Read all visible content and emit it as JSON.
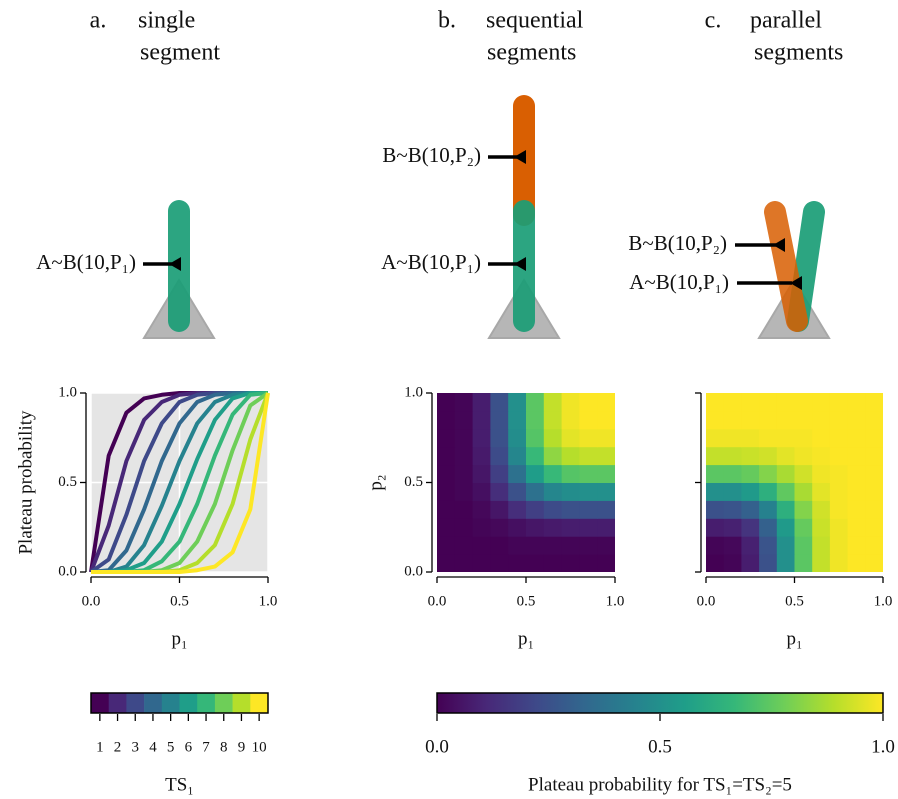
{
  "panels": [
    {
      "letter": "a.",
      "title": [
        "single",
        "segment"
      ],
      "labels": [
        "A~B(10,P₁)"
      ]
    },
    {
      "letter": "b.",
      "title": [
        "sequential",
        "segments"
      ],
      "labels": [
        "B~B(10,P₂)",
        "A~B(10,P₁)"
      ]
    },
    {
      "letter": "c.",
      "title": [
        "parallel",
        "segments"
      ],
      "labels": [
        "B~B(10,P₂)",
        "A~B(10,P₁)"
      ]
    }
  ],
  "colormap": [
    "#440154",
    "#482878",
    "#3e4989",
    "#31688e",
    "#26828e",
    "#1f9e89",
    "#35b779",
    "#6ece58",
    "#b5de2b",
    "#fde725"
  ],
  "chart_data": [
    {
      "type": "line",
      "xlabel": "p₁",
      "ylabel": "Plateau probability",
      "grid": true,
      "x": [
        0,
        0.1,
        0.2,
        0.3,
        0.4,
        0.5,
        0.6,
        0.7,
        0.8,
        0.9,
        1
      ],
      "xlim": [
        0,
        1
      ],
      "ylim": [
        0,
        1
      ],
      "xticks": [
        {
          "value": 0,
          "label": "0.0"
        },
        {
          "value": 0.5,
          "label": "0.5"
        },
        {
          "value": 1,
          "label": "1.0"
        }
      ],
      "yticks": [
        {
          "value": 0,
          "label": "0.0"
        },
        {
          "value": 0.5,
          "label": "0.5"
        },
        {
          "value": 1,
          "label": "1.0"
        }
      ],
      "legend_title": "TS₁",
      "series": [
        {
          "name": "1",
          "color": "#440154",
          "values": [
            0,
            0.65,
            0.89,
            0.97,
            0.99,
            1,
            1,
            1,
            1,
            1,
            1
          ]
        },
        {
          "name": "2",
          "color": "#482878",
          "values": [
            0,
            0.26,
            0.62,
            0.85,
            0.95,
            0.99,
            1,
            1,
            1,
            1,
            1
          ]
        },
        {
          "name": "3",
          "color": "#3e4989",
          "values": [
            0,
            0.07,
            0.32,
            0.62,
            0.83,
            0.95,
            0.99,
            1,
            1,
            1,
            1
          ]
        },
        {
          "name": "4",
          "color": "#31688e",
          "values": [
            0,
            0.01,
            0.12,
            0.35,
            0.62,
            0.83,
            0.95,
            0.99,
            1,
            1,
            1
          ]
        },
        {
          "name": "5",
          "color": "#26828e",
          "values": [
            0,
            0,
            0.03,
            0.15,
            0.37,
            0.62,
            0.83,
            0.95,
            0.99,
            1,
            1
          ]
        },
        {
          "name": "6",
          "color": "#1f9e89",
          "values": [
            0,
            0,
            0.01,
            0.05,
            0.17,
            0.38,
            0.63,
            0.85,
            0.97,
            1,
            1
          ]
        },
        {
          "name": "7",
          "color": "#35b779",
          "values": [
            0,
            0,
            0,
            0.01,
            0.06,
            0.17,
            0.38,
            0.65,
            0.88,
            0.99,
            1
          ]
        },
        {
          "name": "8",
          "color": "#6ece58",
          "values": [
            0,
            0,
            0,
            0,
            0.01,
            0.05,
            0.17,
            0.38,
            0.68,
            0.93,
            1
          ]
        },
        {
          "name": "9",
          "color": "#b5de2b",
          "values": [
            0,
            0,
            0,
            0,
            0,
            0.01,
            0.05,
            0.15,
            0.38,
            0.74,
            1
          ]
        },
        {
          "name": "10",
          "color": "#fde725",
          "values": [
            0,
            0,
            0,
            0,
            0,
            0,
            0.01,
            0.03,
            0.11,
            0.35,
            1
          ]
        }
      ]
    },
    {
      "type": "heatmap",
      "xlabel": "p₁",
      "ylabel": "p₂",
      "x": [
        0.05,
        0.15,
        0.25,
        0.35,
        0.45,
        0.55,
        0.65,
        0.75,
        0.85,
        0.95
      ],
      "y": [
        0.05,
        0.15,
        0.25,
        0.35,
        0.45,
        0.55,
        0.65,
        0.75,
        0.85,
        0.95
      ],
      "xlim": [
        0,
        1
      ],
      "ylim": [
        0,
        1
      ],
      "xticks": [
        {
          "value": 0,
          "label": "0.0"
        },
        {
          "value": 0.5,
          "label": "0.5"
        },
        {
          "value": 1,
          "label": "1.0"
        }
      ],
      "yticks": [
        {
          "value": 0,
          "label": "0.0"
        },
        {
          "value": 0.5,
          "label": "0.5"
        },
        {
          "value": 1,
          "label": "1.0"
        }
      ],
      "values": [
        [
          0,
          0,
          0,
          0,
          0,
          0,
          0,
          0,
          0,
          0
        ],
        [
          0,
          0,
          0,
          0,
          0.01,
          0.01,
          0.01,
          0.01,
          0.01,
          0.01
        ],
        [
          0,
          0,
          0.01,
          0.02,
          0.04,
          0.06,
          0.07,
          0.08,
          0.08,
          0.08
        ],
        [
          0,
          0,
          0.02,
          0.06,
          0.13,
          0.19,
          0.23,
          0.25,
          0.25,
          0.25
        ],
        [
          0,
          0.01,
          0.04,
          0.13,
          0.25,
          0.37,
          0.46,
          0.49,
          0.5,
          0.5
        ],
        [
          0,
          0.01,
          0.06,
          0.19,
          0.37,
          0.55,
          0.67,
          0.73,
          0.74,
          0.74
        ],
        [
          0,
          0.01,
          0.07,
          0.23,
          0.46,
          0.67,
          0.83,
          0.89,
          0.91,
          0.91
        ],
        [
          0,
          0.01,
          0.08,
          0.25,
          0.49,
          0.73,
          0.89,
          0.96,
          0.98,
          0.98
        ],
        [
          0,
          0.01,
          0.08,
          0.25,
          0.5,
          0.74,
          0.91,
          0.98,
          1,
          1
        ],
        [
          0,
          0.01,
          0.08,
          0.25,
          0.5,
          0.74,
          0.91,
          0.98,
          1,
          1
        ]
      ]
    },
    {
      "type": "heatmap",
      "xlabel": "p₁",
      "x": [
        0.05,
        0.15,
        0.25,
        0.35,
        0.45,
        0.55,
        0.65,
        0.75,
        0.85,
        0.95
      ],
      "y": [
        0.05,
        0.15,
        0.25,
        0.35,
        0.45,
        0.55,
        0.65,
        0.75,
        0.85,
        0.95
      ],
      "xlim": [
        0,
        1
      ],
      "ylim": [
        0,
        1
      ],
      "xticks": [
        {
          "value": 0,
          "label": "0.0"
        },
        {
          "value": 0.5,
          "label": "0.5"
        },
        {
          "value": 1,
          "label": "1.0"
        }
      ],
      "values": [
        [
          0,
          0.01,
          0.08,
          0.25,
          0.5,
          0.74,
          0.91,
          0.98,
          1,
          1
        ],
        [
          0.01,
          0.02,
          0.09,
          0.26,
          0.5,
          0.74,
          0.91,
          0.98,
          1,
          1
        ],
        [
          0.08,
          0.09,
          0.15,
          0.31,
          0.54,
          0.76,
          0.92,
          0.98,
          1,
          1
        ],
        [
          0.25,
          0.26,
          0.31,
          0.44,
          0.63,
          0.81,
          0.93,
          0.99,
          1,
          1
        ],
        [
          0.5,
          0.5,
          0.54,
          0.63,
          0.75,
          0.87,
          0.96,
          0.99,
          1,
          1
        ],
        [
          0.74,
          0.74,
          0.76,
          0.81,
          0.87,
          0.93,
          0.98,
          0.99,
          1,
          1
        ],
        [
          0.91,
          0.91,
          0.92,
          0.93,
          0.96,
          0.98,
          0.99,
          1,
          1,
          1
        ],
        [
          0.98,
          0.98,
          0.98,
          0.99,
          0.99,
          0.99,
          1,
          1,
          1,
          1
        ],
        [
          1,
          1,
          1,
          1,
          1,
          1,
          1,
          1,
          1,
          1
        ],
        [
          1,
          1,
          1,
          1,
          1,
          1,
          1,
          1,
          1,
          1
        ]
      ]
    }
  ],
  "colorbar": {
    "label": "Plateau probability for TS₁=TS₂=5",
    "lim": [
      0,
      1
    ],
    "ticks": [
      {
        "value": 0,
        "label": "0.0"
      },
      {
        "value": 0.5,
        "label": "0.5"
      },
      {
        "value": 1,
        "label": "1.0"
      }
    ]
  }
}
